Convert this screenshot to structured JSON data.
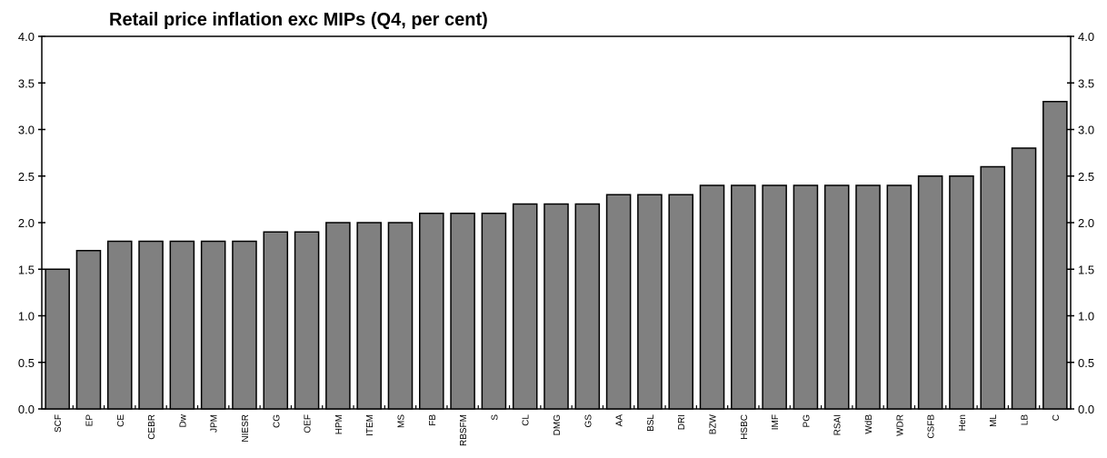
{
  "chart_data": {
    "type": "bar",
    "title": "Retail price inflation exc MIPs (Q4, per cent)",
    "xlabel": "",
    "ylabel": "",
    "ylim": [
      0,
      4.0
    ],
    "yticks": [
      "0.0",
      "0.5",
      "1.0",
      "1.5",
      "2.0",
      "2.5",
      "3.0",
      "3.5",
      "4.0"
    ],
    "grid": false,
    "bar_color": "#808080",
    "categories": [
      "SCF",
      "EP",
      "CE",
      "CEBR",
      "Dw",
      "JPM",
      "NIESR",
      "CG",
      "OEF",
      "HPM",
      "ITEM",
      "MS",
      "FB",
      "RBSFM",
      "S",
      "CL",
      "DMG",
      "GS",
      "AA",
      "BSL",
      "DRI",
      "BZW",
      "HSBC",
      "IMF",
      "PG",
      "RSAI",
      "WdB",
      "WDR",
      "CSFB",
      "Hen",
      "ML",
      "LB",
      "C"
    ],
    "values": [
      1.5,
      1.7,
      1.8,
      1.8,
      1.8,
      1.8,
      1.8,
      1.9,
      1.9,
      2.0,
      2.0,
      2.0,
      2.1,
      2.1,
      2.1,
      2.2,
      2.2,
      2.2,
      2.3,
      2.3,
      2.3,
      2.4,
      2.4,
      2.4,
      2.4,
      2.4,
      2.4,
      2.4,
      2.5,
      2.5,
      2.6,
      2.8,
      3.3
    ]
  }
}
